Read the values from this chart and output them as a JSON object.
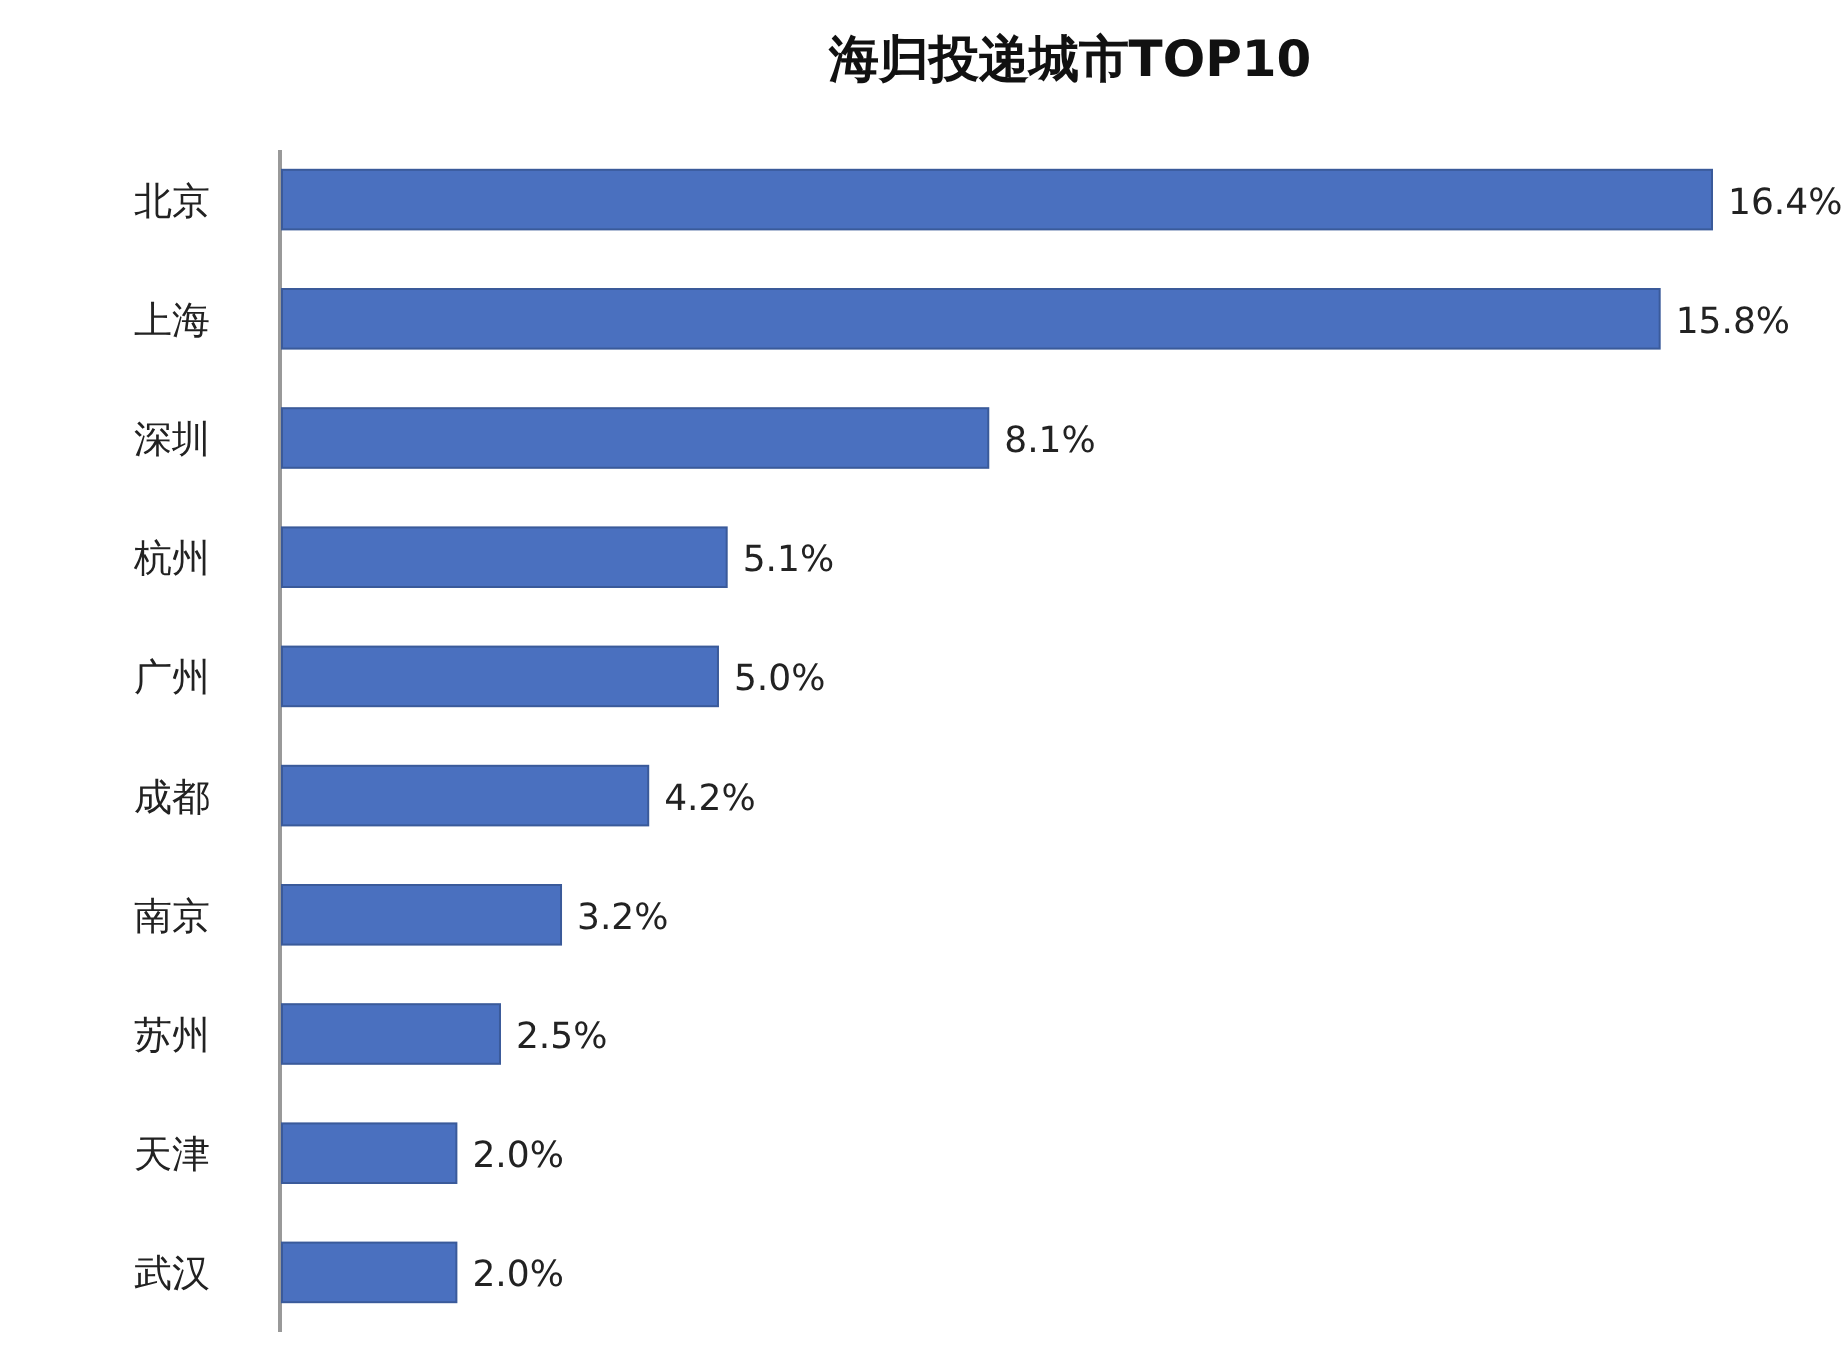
{
  "chart_data": {
    "type": "bar",
    "orientation": "horizontal",
    "title": "海归投递城市TOP10",
    "categories": [
      "北京",
      "上海",
      "深圳",
      "杭州",
      "广州",
      "成都",
      "南京",
      "苏州",
      "天津",
      "武汉"
    ],
    "values": [
      16.4,
      15.8,
      8.1,
      5.1,
      5.0,
      4.2,
      3.2,
      2.5,
      2.0,
      2.0
    ],
    "value_labels": [
      "16.4%",
      "15.8%",
      "8.1%",
      "5.1%",
      "5.0%",
      "4.2%",
      "3.2%",
      "2.5%",
      "2.0%",
      "2.0%"
    ],
    "color": "#4a70bf"
  }
}
